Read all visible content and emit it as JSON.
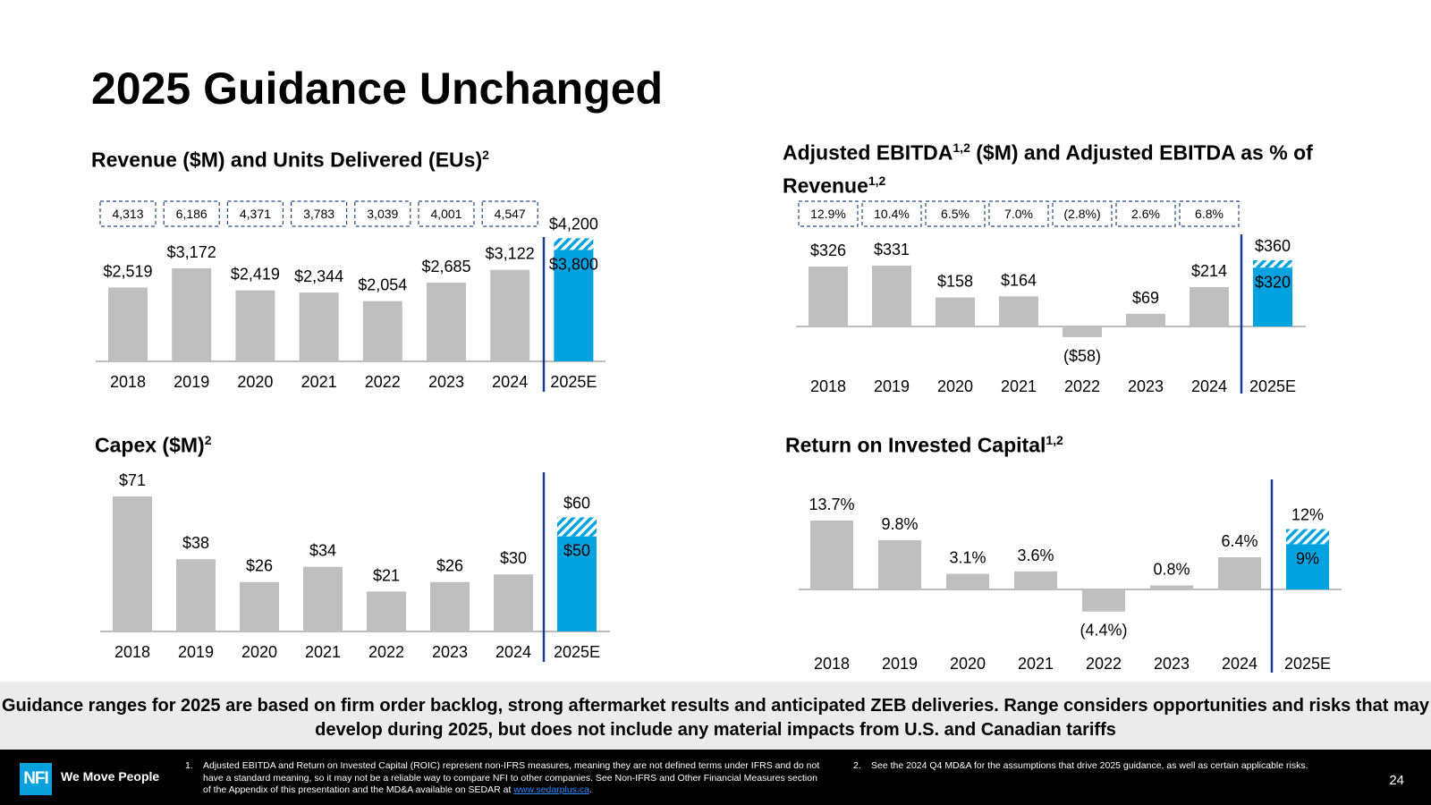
{
  "page": {
    "title": "2025 Guidance Unchanged",
    "page_number": "24",
    "banner": "Guidance ranges for 2025 are based on firm order backlog, strong aftermarket results and anticipated ZEB deliveries. Range considers opportunities and risks that may develop during 2025, but does not include any material impacts from U.S. and Canadian tariffs"
  },
  "footer": {
    "logo": "NFI",
    "tagline": "We Move People",
    "note1_num": "1.",
    "note1_text": "Adjusted EBITDA and Return on Invested Capital (ROIC) represent non-IFRS measures, meaning they are not defined terms under IFRS and do not have a standard meaning, so it may not be a reliable way to compare NFI to other companies. See Non-IFRS and Other Financial Measures section of the Appendix of this presentation and the MD&A available on SEDAR at",
    "note1_link": "www.sedarplus.ca",
    "note1_end": ".",
    "note2_num": "2.",
    "note2_text": "See the 2024 Q4 MD&A for the assumptions that drive 2025 guidance, as well as certain applicable risks."
  },
  "colors": {
    "bar": "#bfbfbf",
    "guidance": "#00a3e0",
    "divider": "#1f3a93",
    "box_border": "#1f497d",
    "axis": "#a6a6a6"
  },
  "chart_data": [
    {
      "id": "revenue",
      "type": "bar",
      "title": "Revenue ($M) and Units Delivered (EUs)",
      "title_sup": "2",
      "categories": [
        "2018",
        "2019",
        "2020",
        "2021",
        "2022",
        "2023",
        "2024",
        "2025E"
      ],
      "values": [
        2519,
        3172,
        2419,
        2344,
        2054,
        2685,
        3122,
        3800
      ],
      "labels": [
        "$2,519",
        "$3,172",
        "$2,419",
        "$2,344",
        "$2,054",
        "$2,685",
        "$3,122",
        "$3,800"
      ],
      "guidance_high": 4200,
      "guidance_high_label": "$4,200",
      "box_labels": [
        "4,313",
        "6,186",
        "4,371",
        "3,783",
        "3,039",
        "4,001",
        "4,547"
      ],
      "ylim": [
        0,
        4200
      ]
    },
    {
      "id": "ebitda",
      "type": "bar",
      "title": "Adjusted EBITDA",
      "title_sup": "1,2",
      "title_mid": " ($M) and Adjusted EBITDA as % of Revenue",
      "title_sup2": "1,2",
      "categories": [
        "2018",
        "2019",
        "2020",
        "2021",
        "2022",
        "2023",
        "2024",
        "2025E"
      ],
      "values": [
        326,
        331,
        158,
        164,
        -58,
        69,
        214,
        320
      ],
      "labels": [
        "$326",
        "$331",
        "$158",
        "$164",
        "($58)",
        "$69",
        "$214",
        "$320"
      ],
      "guidance_high": 360,
      "guidance_high_label": "$360",
      "box_labels": [
        "12.9%",
        "10.4%",
        "6.5%",
        "7.0%",
        "(2.8%)",
        "2.6%",
        "6.8%"
      ],
      "ylim": [
        -58,
        360
      ]
    },
    {
      "id": "capex",
      "type": "bar",
      "title": "Capex ($M)",
      "title_sup": "2",
      "categories": [
        "2018",
        "2019",
        "2020",
        "2021",
        "2022",
        "2023",
        "2024",
        "2025E"
      ],
      "values": [
        71,
        38,
        26,
        34,
        21,
        26,
        30,
        50
      ],
      "labels": [
        "$71",
        "$38",
        "$26",
        "$34",
        "$21",
        "$26",
        "$30",
        "$50"
      ],
      "guidance_high": 60,
      "guidance_high_label": "$60",
      "ylim": [
        0,
        71
      ]
    },
    {
      "id": "roic",
      "type": "bar",
      "title": "Return on Invested Capital",
      "title_sup": "1,2",
      "categories": [
        "2018",
        "2019",
        "2020",
        "2021",
        "2022",
        "2023",
        "2024",
        "2025E"
      ],
      "values": [
        13.7,
        9.8,
        3.1,
        3.6,
        -4.4,
        0.8,
        6.4,
        9
      ],
      "labels": [
        "13.7%",
        "9.8%",
        "3.1%",
        "3.6%",
        "(4.4%)",
        "0.8%",
        "6.4%",
        "9%"
      ],
      "guidance_high": 12,
      "guidance_high_label": "12%",
      "ylim": [
        -4.4,
        13.7
      ]
    }
  ]
}
